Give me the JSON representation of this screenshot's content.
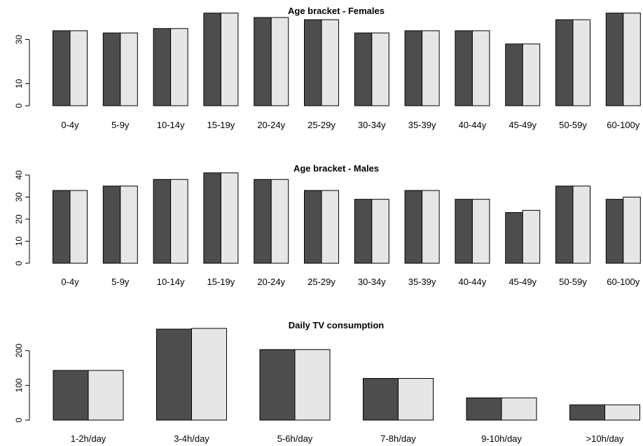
{
  "chart_data": [
    {
      "type": "bar",
      "title": "Age bracket - Females",
      "xlabel": "",
      "ylabel": "",
      "categories": [
        "0-4y",
        "5-9y",
        "10-14y",
        "15-19y",
        "20-24y",
        "25-29y",
        "30-34y",
        "35-39y",
        "40-44y",
        "45-49y",
        "50-59y",
        "60-100y"
      ],
      "series": [
        {
          "values": [
            34,
            33,
            35,
            42,
            40,
            39,
            33,
            34,
            34,
            28,
            39,
            42
          ]
        },
        {
          "values": [
            34,
            33,
            35,
            42,
            40,
            39,
            33,
            34,
            34,
            28,
            39,
            42
          ]
        }
      ],
      "yticks": [
        0,
        10,
        30
      ],
      "ylim": [
        0,
        40
      ],
      "grid": false,
      "colors": [
        "#4d4d4d",
        "#e6e6e6"
      ]
    },
    {
      "type": "bar",
      "title": "Age bracket - Males",
      "xlabel": "",
      "ylabel": "",
      "categories": [
        "0-4y",
        "5-9y",
        "10-14y",
        "15-19y",
        "20-24y",
        "25-29y",
        "30-34y",
        "35-39y",
        "40-44y",
        "45-49y",
        "50-59y",
        "60-100y"
      ],
      "series": [
        {
          "values": [
            33,
            35,
            38,
            41,
            38,
            33,
            29,
            33,
            29,
            23,
            35,
            29
          ]
        },
        {
          "values": [
            33,
            35,
            38,
            41,
            38,
            33,
            29,
            33,
            29,
            24,
            35,
            30
          ]
        }
      ],
      "yticks": [
        0,
        10,
        20,
        30,
        40
      ],
      "ylim": [
        0,
        40
      ],
      "grid": false,
      "colors": [
        "#4d4d4d",
        "#e6e6e6"
      ]
    },
    {
      "type": "bar",
      "title": "Daily TV consumption",
      "xlabel": "",
      "ylabel": "",
      "categories": [
        "1-2h/day",
        "3-4h/day",
        "5-6h/day",
        "7-8h/day",
        "9-10h/day",
        ">10h/day"
      ],
      "series": [
        {
          "values": [
            143,
            262,
            203,
            120,
            64,
            44
          ]
        },
        {
          "values": [
            143,
            264,
            203,
            120,
            64,
            44
          ]
        }
      ],
      "yticks": [
        0,
        100,
        200
      ],
      "ylim": [
        0,
        250
      ],
      "grid": false,
      "colors": [
        "#4d4d4d",
        "#e6e6e6"
      ]
    }
  ]
}
